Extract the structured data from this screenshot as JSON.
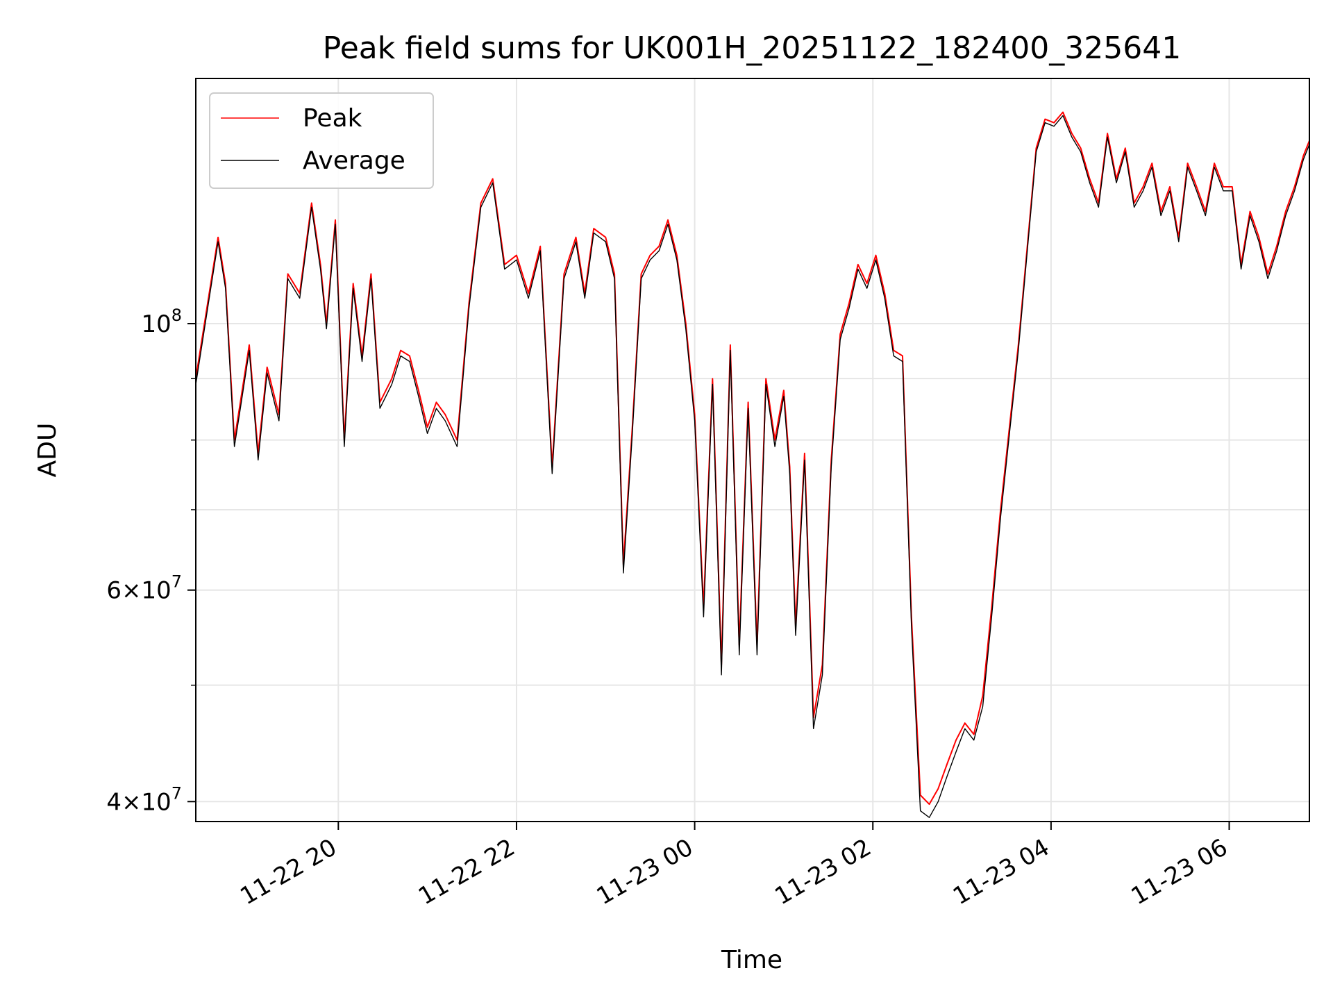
{
  "chart_data": {
    "type": "line",
    "title": "Peak field sums for UK001H_20251122_182400_325641",
    "xlabel": "Time",
    "ylabel": "ADU",
    "yscale": "log",
    "xlim": [
      "2025-11-22 18:24",
      "2025-11-23 06:54"
    ],
    "ylim": [
      38500000,
      160000000
    ],
    "grid": true,
    "legend": {
      "placement": "upper left",
      "entries": [
        "Peak",
        "Average"
      ]
    },
    "xticks": [
      {
        "t": "2025-11-22 20:00",
        "label": "11-22 20"
      },
      {
        "t": "2025-11-22 22:00",
        "label": "11-22 22"
      },
      {
        "t": "2025-11-23 00:00",
        "label": "11-23 00"
      },
      {
        "t": "2025-11-23 02:00",
        "label": "11-23 02"
      },
      {
        "t": "2025-11-23 04:00",
        "label": "11-23 04"
      },
      {
        "t": "2025-11-23 06:00",
        "label": "11-23 06"
      }
    ],
    "yticks_major": [
      {
        "value": 40000000,
        "mant": "4",
        "exp": "7"
      },
      {
        "value": 60000000,
        "mant": "6",
        "exp": "7"
      },
      {
        "value": 100000000,
        "mant": "",
        "exp": "8"
      }
    ],
    "yticks_minor_grid": [
      50000000,
      70000000,
      80000000,
      90000000,
      200000000
    ],
    "x_minutes_from_start": [
      0,
      8,
      15,
      20,
      26,
      30,
      36,
      42,
      48,
      56,
      62,
      70,
      78,
      84,
      88,
      94,
      100,
      106,
      112,
      118,
      124,
      132,
      138,
      144,
      150,
      156,
      162,
      168,
      176,
      184,
      192,
      200,
      208,
      216,
      224,
      232,
      240,
      248,
      256,
      262,
      268,
      276,
      282,
      288,
      294,
      300,
      306,
      312,
      318,
      324,
      330,
      336,
      342,
      348,
      354,
      360,
      366,
      372,
      378,
      384,
      390,
      396,
      400,
      404,
      410,
      416,
      422,
      428,
      434,
      440,
      446,
      452,
      458,
      464,
      470,
      476,
      482,
      488,
      494,
      500,
      506,
      512,
      518,
      524,
      530,
      536,
      542,
      548,
      554,
      560,
      566,
      572,
      578,
      584,
      590,
      596,
      602,
      608,
      614,
      620,
      626,
      632,
      638,
      644,
      650,
      656,
      662,
      668,
      674,
      680,
      686,
      692,
      698,
      704,
      710,
      716,
      722,
      728,
      734,
      740,
      746,
      750
    ],
    "series": [
      {
        "name": "Peak",
        "color": "#ff0000",
        "values": [
          90,
          104,
          118,
          108,
          80,
          86,
          96,
          78,
          92,
          84,
          110,
          106,
          126,
          112,
          100,
          122,
          80,
          108,
          94,
          110,
          86,
          90,
          95,
          94,
          88,
          82,
          86,
          84,
          80,
          104,
          126,
          132,
          112,
          114,
          106,
          116,
          76,
          110,
          118,
          106,
          120,
          118,
          110,
          63,
          82,
          110,
          114,
          116,
          122,
          114,
          100,
          84,
          58,
          90,
          52,
          96,
          54,
          86,
          54,
          90,
          80,
          88,
          76,
          56,
          78,
          47,
          52,
          77,
          98,
          104,
          112,
          108,
          114,
          106,
          95,
          94,
          57,
          40.5,
          39.8,
          41,
          43,
          45,
          46.5,
          45.5,
          49,
          58,
          70,
          82,
          96,
          116,
          140,
          148,
          147,
          150,
          144,
          140,
          132,
          126,
          144,
          132,
          140,
          126,
          130,
          136,
          124,
          130,
          118,
          136,
          130,
          124,
          136,
          130,
          130,
          112,
          124,
          118,
          110,
          116,
          124,
          130,
          138,
          142
        ]
      },
      {
        "name": "Average",
        "color": "#000000",
        "values": [
          89,
          103,
          117,
          107,
          79,
          85,
          95,
          77,
          91,
          83,
          109,
          105,
          125,
          111,
          99,
          121,
          79,
          107,
          93,
          109,
          85,
          89,
          94,
          93,
          87,
          81,
          85,
          83,
          79,
          103,
          125,
          131,
          111,
          113,
          105,
          115,
          75,
          109,
          117,
          105,
          119,
          117,
          109,
          62,
          81,
          109,
          113,
          115,
          121,
          113,
          99,
          83,
          57,
          89,
          51,
          95,
          53,
          85,
          53,
          89,
          79,
          87,
          75,
          55,
          77,
          46,
          51,
          76,
          97,
          103,
          111,
          107,
          113,
          105,
          94,
          93,
          56,
          39.3,
          38.8,
          40,
          42,
          44,
          46,
          45,
          48,
          57,
          69,
          81,
          95,
          115,
          139,
          147,
          146,
          149,
          143,
          139,
          131,
          125,
          143,
          131,
          139,
          125,
          129,
          135,
          123,
          129,
          117,
          135,
          129,
          123,
          135,
          129,
          129,
          111,
          123,
          117,
          109,
          115,
          123,
          129,
          137,
          141
        ]
      }
    ],
    "value_unit_note": "series values in millions of ADU"
  }
}
